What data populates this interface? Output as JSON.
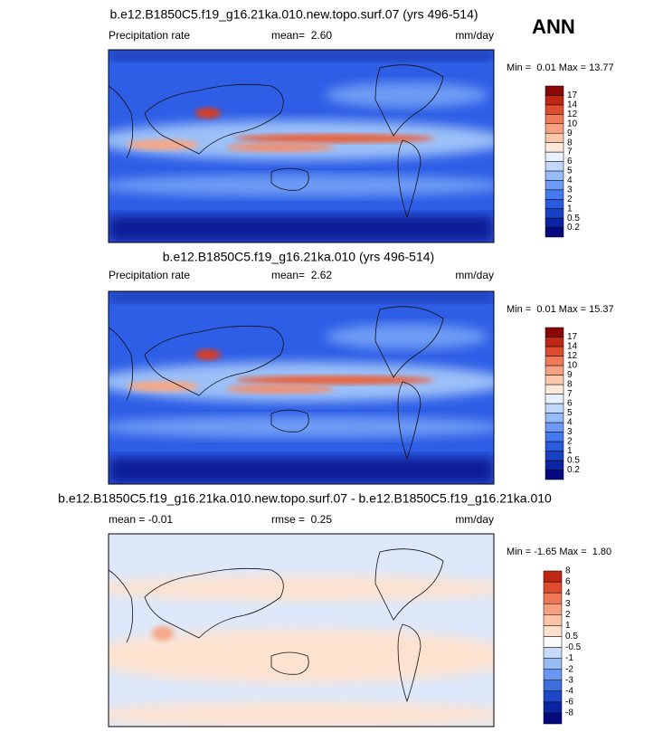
{
  "header": {
    "season": "ANN"
  },
  "panels": [
    {
      "title": "b.e12.B1850C5.f19_g16.21ka.010.new.topo.surf.07 (yrs 496-514)",
      "left": "Precipitation rate",
      "center": "mean=  2.60",
      "right": "mm/day",
      "minmax": "Min =  0.01 Max = 13.77",
      "colorbar": {
        "labels": [
          "0.2",
          "0.5",
          "1",
          "2",
          "3",
          "4",
          "5",
          "6",
          "7",
          "8",
          "9",
          "10",
          "12",
          "14",
          "17"
        ],
        "colors": [
          "#06087e",
          "#0b24a4",
          "#1840c4",
          "#2a5ade",
          "#4478ee",
          "#6c9af4",
          "#96bcf8",
          "#c2d8fb",
          "#e8f0fd",
          "#fde8da",
          "#fbc8ac",
          "#f6a282",
          "#ee7a58",
          "#de4c30",
          "#c02614",
          "#8a0808"
        ]
      }
    },
    {
      "title": "b.e12.B1850C5.f19_g16.21ka.010 (yrs 496-514)",
      "left": "Precipitation rate",
      "center": "mean=  2.62",
      "right": "mm/day",
      "minmax": "Min =  0.01 Max = 15.37",
      "colorbar": {
        "labels": [
          "0.2",
          "0.5",
          "1",
          "2",
          "3",
          "4",
          "5",
          "6",
          "7",
          "8",
          "9",
          "10",
          "12",
          "14",
          "17"
        ],
        "colors": [
          "#06087e",
          "#0b24a4",
          "#1840c4",
          "#2a5ade",
          "#4478ee",
          "#6c9af4",
          "#96bcf8",
          "#c2d8fb",
          "#e8f0fd",
          "#fde8da",
          "#fbc8ac",
          "#f6a282",
          "#ee7a58",
          "#de4c30",
          "#c02614",
          "#8a0808"
        ]
      }
    },
    {
      "title": "b.e12.B1850C5.f19_g16.21ka.010.new.topo.surf.07 - b.e12.B1850C5.f19_g16.21ka.010",
      "left": "mean = -0.01",
      "center": "rmse =  0.25",
      "right": "mm/day",
      "minmax": "Min = -1.65 Max =  1.80",
      "colorbar": {
        "labels": [
          "-8",
          "-6",
          "-4",
          "-3",
          "-2",
          "-1",
          "-0.5",
          "0.5",
          "1",
          "2",
          "3",
          "4",
          "6",
          "8"
        ],
        "colors": [
          "#06087e",
          "#0b24a4",
          "#1e46c8",
          "#3c6edc",
          "#6896f0",
          "#98baf5",
          "#c6dafb",
          "#fbfbfb",
          "#fde0cc",
          "#fbc4a4",
          "#f6a080",
          "#ee7854",
          "#de4c30",
          "#c02614"
        ]
      }
    }
  ]
}
